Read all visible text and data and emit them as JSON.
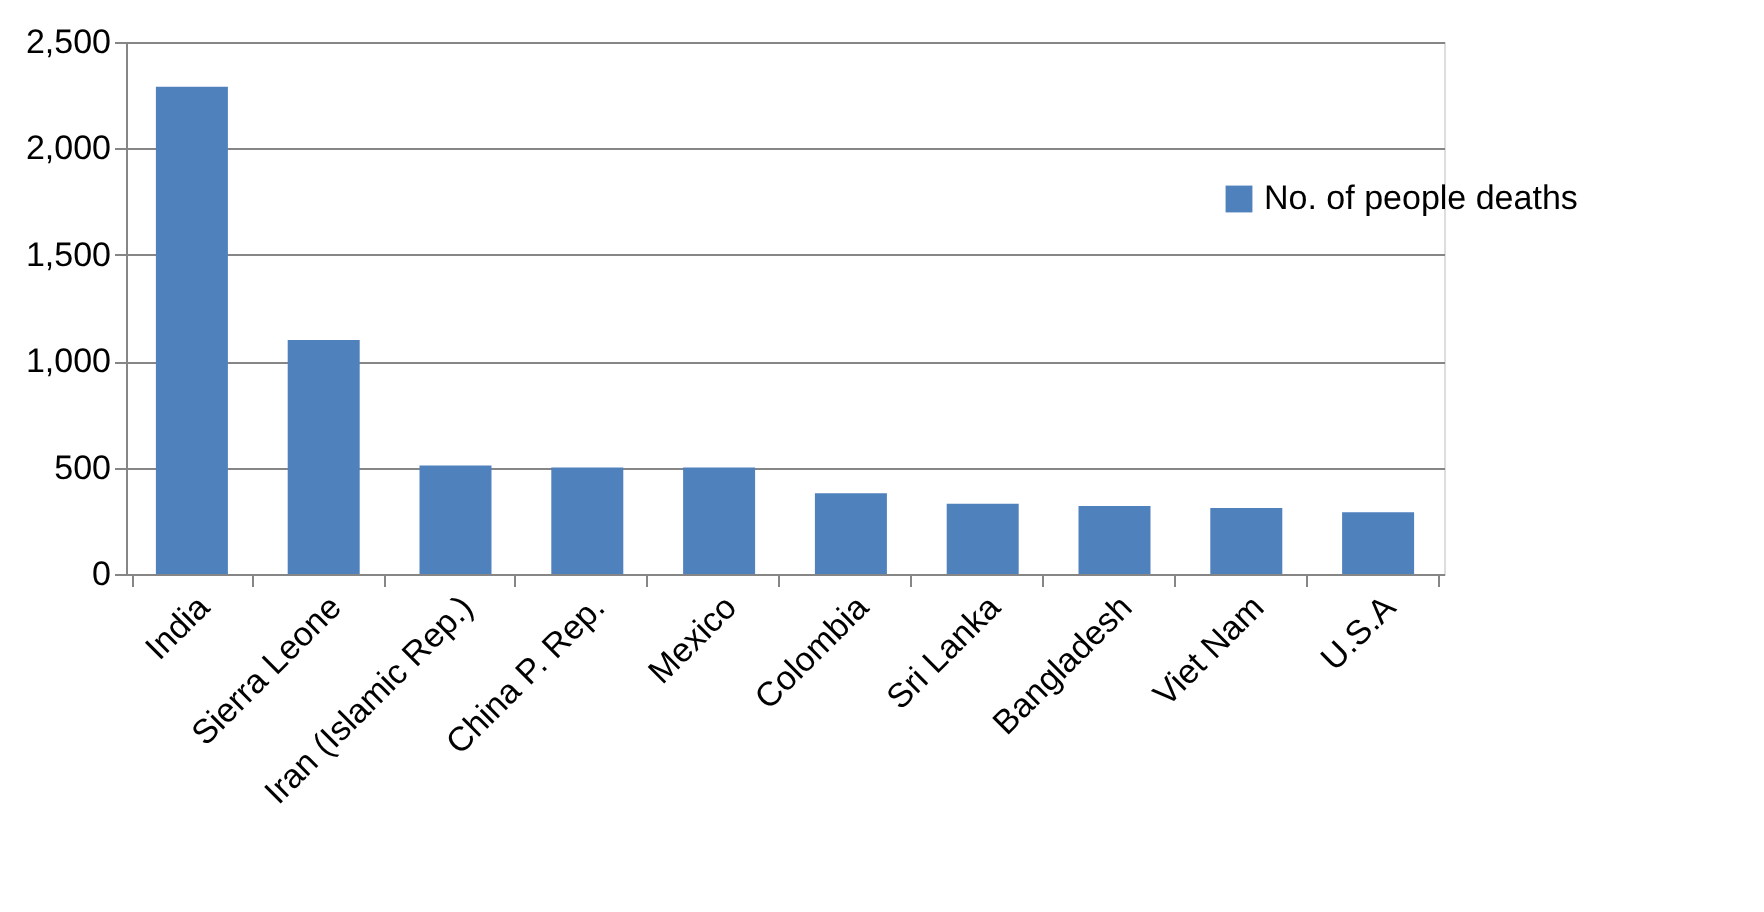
{
  "chart_data": {
    "type": "bar",
    "categories": [
      "India",
      "Sierra Leone",
      "Iran (Islamic Rep.)",
      "China P. Rep.",
      "Mexico",
      "Colombia",
      "Sri Lanka",
      "Bangladesh",
      "Viet Nam",
      "U.S.A"
    ],
    "series": [
      {
        "name": "No. of people  deaths",
        "color": "#4f81bd",
        "values": [
          2290,
          1100,
          510,
          500,
          500,
          380,
          330,
          320,
          310,
          290
        ]
      }
    ],
    "ylim": [
      0,
      2500
    ],
    "yticks": [
      0,
      500,
      {
        "value": 1000,
        "label": "1,000"
      },
      {
        "value": 1500,
        "label": "1,500"
      },
      {
        "value": 2000,
        "label": "2,000"
      },
      {
        "value": 2500,
        "label": "2,500"
      }
    ],
    "grid": "y",
    "legend": "right"
  }
}
